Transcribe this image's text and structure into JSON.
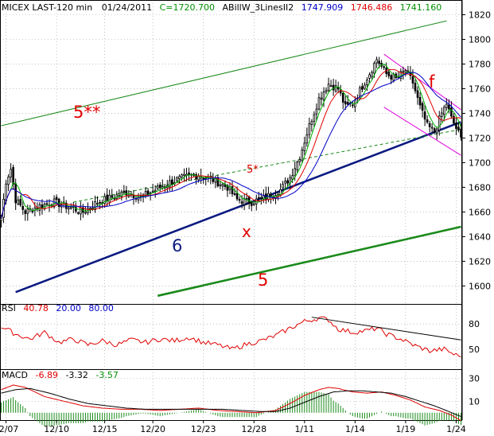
{
  "colors": {
    "background": "#ffffff",
    "frame": "#000000",
    "grid": "#9a9a9a",
    "candle": "#000000",
    "ma_green": "#00b000",
    "ma_red": "#e00000",
    "ma_blue": "#0000c8",
    "trend_navy": "#0a1a80",
    "trend_green": "#1a8a1a",
    "channel_magenta": "#e000e0",
    "label_red": "#e00000",
    "rsi_line": "#e00000",
    "macd_line": "#e00000",
    "macd_signal": "#000000",
    "macd_hist": "#1a8a1a"
  },
  "header": {
    "title": "MICEX LAST-120 min",
    "date": "01/24/2011",
    "close": "C=1720.700",
    "indicator": "ABillW_3LinesII2",
    "v1": "1747.909",
    "v2": "1746.486",
    "v3": "1741.160"
  },
  "rsi_header": {
    "label": "RSI",
    "v1": "40.78",
    "v2": "20.00",
    "v3": "80.00"
  },
  "macd_header": {
    "label": "MACD",
    "v1": "-6.89",
    "v2": "-3.32",
    "v3": "-3.57"
  },
  "annotations": {
    "five_star_star": "5**",
    "five_star": "5*",
    "f": "f",
    "x": "x",
    "six": "6",
    "five": "5"
  },
  "chart_data": [
    {
      "type": "candlestick",
      "panel": "price",
      "ylim": [
        1588,
        1830
      ],
      "y_ticks": [
        1600,
        1620,
        1640,
        1660,
        1680,
        1700,
        1720,
        1740,
        1760,
        1780,
        1800,
        1820
      ],
      "x_tick_labels": [
        "12/07",
        "12/10",
        "12/15",
        "12/20",
        "12/23",
        "12/28",
        "1/11",
        "1/14",
        "1/19",
        "1/24"
      ],
      "x_tick_index": [
        2,
        23,
        43,
        63,
        84,
        105,
        126,
        147,
        168,
        189
      ],
      "bar_count": 192,
      "close_anchors": [
        [
          0,
          1655
        ],
        [
          2,
          1685
        ],
        [
          4,
          1695
        ],
        [
          6,
          1670
        ],
        [
          10,
          1660
        ],
        [
          16,
          1665
        ],
        [
          22,
          1668
        ],
        [
          28,
          1664
        ],
        [
          34,
          1660
        ],
        [
          40,
          1668
        ],
        [
          46,
          1672
        ],
        [
          52,
          1676
        ],
        [
          58,
          1672
        ],
        [
          64,
          1678
        ],
        [
          70,
          1684
        ],
        [
          76,
          1688
        ],
        [
          82,
          1690
        ],
        [
          88,
          1686
        ],
        [
          94,
          1680
        ],
        [
          98,
          1670
        ],
        [
          104,
          1668
        ],
        [
          110,
          1672
        ],
        [
          116,
          1678
        ],
        [
          120,
          1688
        ],
        [
          124,
          1705
        ],
        [
          128,
          1730
        ],
        [
          132,
          1752
        ],
        [
          136,
          1764
        ],
        [
          140,
          1760
        ],
        [
          143,
          1745
        ],
        [
          146,
          1748
        ],
        [
          150,
          1762
        ],
        [
          154,
          1776
        ],
        [
          156,
          1784
        ],
        [
          160,
          1772
        ],
        [
          164,
          1768
        ],
        [
          168,
          1775
        ],
        [
          171,
          1765
        ],
        [
          174,
          1745
        ],
        [
          177,
          1730
        ],
        [
          180,
          1725
        ],
        [
          183,
          1740
        ],
        [
          185,
          1748
        ],
        [
          187,
          1736
        ],
        [
          189,
          1728
        ],
        [
          191,
          1720.7
        ]
      ],
      "moving_averages": [
        {
          "name": "",
          "period": 5,
          "color": "#00b000"
        },
        {
          "name": "",
          "period": 10,
          "color": "#e00000"
        },
        {
          "name": "",
          "period": 20,
          "color": "#0000c8"
        }
      ],
      "trendlines": [
        {
          "id": "6",
          "color": "#0a1a80",
          "from": [
            6,
            1595
          ],
          "to": [
            191,
            1733
          ]
        },
        {
          "id": "5",
          "color": "#1a8a1a",
          "from": [
            65,
            1592
          ],
          "to": [
            191,
            1648
          ]
        },
        {
          "id": "5**",
          "color": "#1a8a1a",
          "from": [
            0,
            1730
          ],
          "to": [
            185,
            1815
          ]
        },
        {
          "id": "5*",
          "color": "#1a8a1a",
          "dashed": true,
          "from": [
            30,
            1668
          ],
          "to": [
            191,
            1727
          ]
        },
        {
          "id": "channel_top",
          "color": "#e000e0",
          "from": [
            159,
            1788
          ],
          "to": [
            191,
            1743
          ]
        },
        {
          "id": "channel_bottom",
          "color": "#e000e0",
          "from": [
            159,
            1745
          ],
          "to": [
            191,
            1706
          ]
        }
      ]
    },
    {
      "type": "line",
      "panel": "rsi",
      "ylim": [
        30,
        100
      ],
      "y_ticks": [
        50,
        80
      ],
      "levels": [
        20,
        80
      ],
      "series": [
        {
          "name": "",
          "color": "#e00000",
          "anchors": [
            [
              0,
              77
            ],
            [
              6,
              68
            ],
            [
              12,
              62
            ],
            [
              18,
              70
            ],
            [
              24,
              58
            ],
            [
              30,
              62
            ],
            [
              36,
              55
            ],
            [
              42,
              60
            ],
            [
              48,
              55
            ],
            [
              54,
              61
            ],
            [
              60,
              58
            ],
            [
              66,
              62
            ],
            [
              72,
              60
            ],
            [
              78,
              64
            ],
            [
              84,
              58
            ],
            [
              90,
              55
            ],
            [
              96,
              50
            ],
            [
              102,
              56
            ],
            [
              108,
              60
            ],
            [
              114,
              66
            ],
            [
              120,
              75
            ],
            [
              126,
              83
            ],
            [
              132,
              87
            ],
            [
              136,
              85
            ],
            [
              140,
              74
            ],
            [
              146,
              70
            ],
            [
              152,
              72
            ],
            [
              156,
              75
            ],
            [
              160,
              68
            ],
            [
              166,
              62
            ],
            [
              172,
              54
            ],
            [
              178,
              48
            ],
            [
              184,
              50
            ],
            [
              188,
              44
            ],
            [
              191,
              40.78
            ]
          ]
        },
        {
          "name": "",
          "color": "#000000",
          "anchors": [
            [
              129,
              88
            ],
            [
              191,
              61
            ]
          ]
        }
      ]
    },
    {
      "type": "line",
      "panel": "macd",
      "ylim": [
        -5,
        35
      ],
      "y_ticks": [
        10,
        30
      ],
      "series": [
        {
          "name": "",
          "color": "#e00000",
          "anchors": [
            [
              0,
              20
            ],
            [
              5,
              24
            ],
            [
              10,
              22
            ],
            [
              18,
              14
            ],
            [
              26,
              10
            ],
            [
              34,
              6
            ],
            [
              42,
              4
            ],
            [
              50,
              3
            ],
            [
              58,
              3
            ],
            [
              66,
              2
            ],
            [
              74,
              3
            ],
            [
              82,
              4
            ],
            [
              90,
              2
            ],
            [
              98,
              1
            ],
            [
              106,
              0
            ],
            [
              114,
              2
            ],
            [
              120,
              8
            ],
            [
              126,
              15
            ],
            [
              132,
              20
            ],
            [
              136,
              22
            ],
            [
              140,
              21
            ],
            [
              146,
              18
            ],
            [
              152,
              17
            ],
            [
              158,
              18
            ],
            [
              164,
              15
            ],
            [
              170,
              11
            ],
            [
              176,
              5
            ],
            [
              182,
              2
            ],
            [
              187,
              -2
            ],
            [
              191,
              -6.89
            ]
          ]
        },
        {
          "name": "",
          "color": "#000000",
          "anchors": [
            [
              0,
              17
            ],
            [
              6,
              20
            ],
            [
              12,
              21
            ],
            [
              20,
              17
            ],
            [
              28,
              12
            ],
            [
              36,
              8
            ],
            [
              44,
              6
            ],
            [
              52,
              4
            ],
            [
              60,
              3
            ],
            [
              68,
              3
            ],
            [
              76,
              3
            ],
            [
              84,
              3
            ],
            [
              92,
              3
            ],
            [
              100,
              2
            ],
            [
              108,
              1
            ],
            [
              114,
              1
            ],
            [
              120,
              4
            ],
            [
              126,
              9
            ],
            [
              132,
              14
            ],
            [
              138,
              18
            ],
            [
              144,
              19
            ],
            [
              150,
              19
            ],
            [
              156,
              18
            ],
            [
              162,
              17
            ],
            [
              168,
              14
            ],
            [
              174,
              10
            ],
            [
              180,
              6
            ],
            [
              186,
              1
            ],
            [
              191,
              -3.32
            ]
          ]
        }
      ],
      "histogram_color": "#1a8a1a"
    }
  ]
}
